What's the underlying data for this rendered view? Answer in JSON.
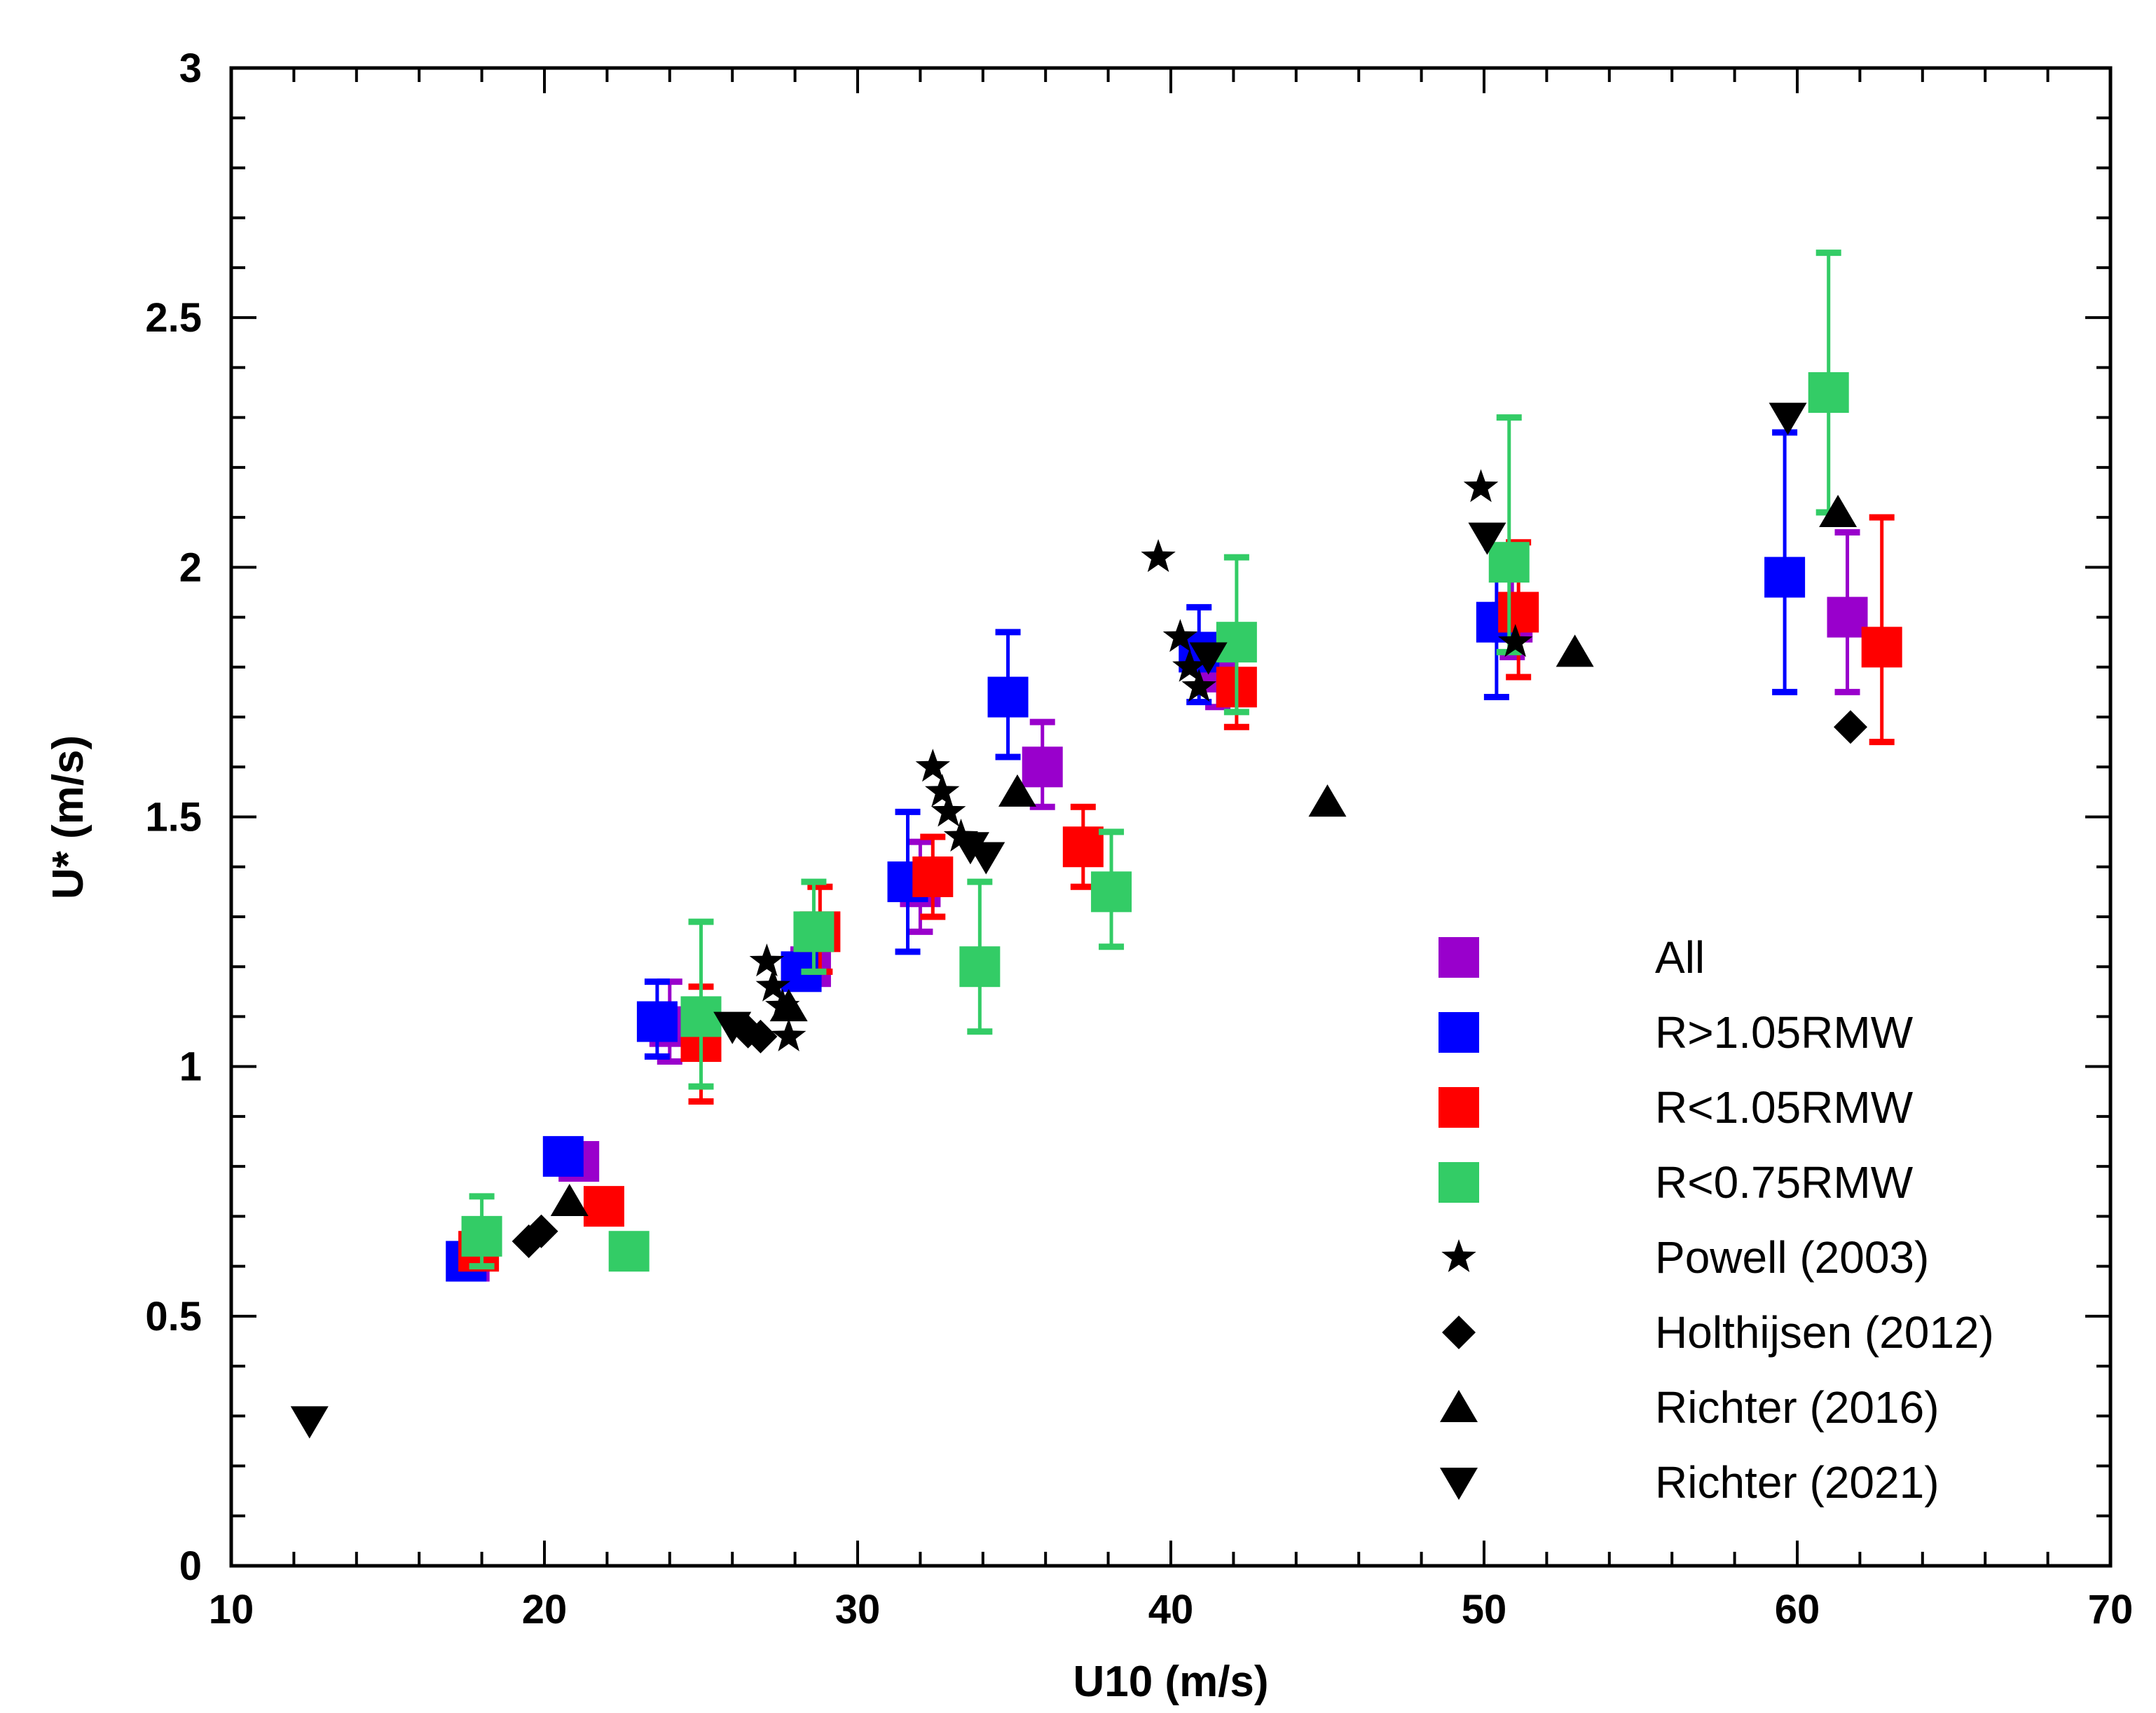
{
  "chart_data": {
    "type": "scatter",
    "title": "",
    "xlabel": "U10 (m/s)",
    "ylabel": "U* (m/s)",
    "xlim": [
      10,
      70
    ],
    "ylim": [
      0,
      3
    ],
    "x_ticks": [
      "10",
      "20",
      "30",
      "40",
      "50",
      "60",
      "70"
    ],
    "y_ticks": [
      "0",
      "0.5",
      "1",
      "1.5",
      "2",
      "2.5",
      "3"
    ],
    "legend_position": "bottom-right",
    "series": [
      {
        "name": "All",
        "marker": "square",
        "color": "#9900cc",
        "points": [
          {
            "x": 17.6,
            "y": 0.61
          },
          {
            "x": 21.1,
            "y": 0.81
          },
          {
            "x": 24.0,
            "y": 1.08,
            "err_low": 1.01,
            "err_high": 1.17
          },
          {
            "x": 28.5,
            "y": 1.2
          },
          {
            "x": 32.0,
            "y": 1.36,
            "err_low": 1.27,
            "err_high": 1.45
          },
          {
            "x": 35.9,
            "y": 1.6,
            "err_low": 1.52,
            "err_high": 1.69
          },
          {
            "x": 41.5,
            "y": 1.79,
            "err_low": 1.72,
            "err_high": 1.86
          },
          {
            "x": 50.9,
            "y": 1.89,
            "err_low": 1.82,
            "err_high": 1.98
          },
          {
            "x": 61.6,
            "y": 1.9,
            "err_low": 1.75,
            "err_high": 2.07
          }
        ]
      },
      {
        "name": "R>1.05RMW",
        "marker": "square",
        "color": "#0000ff",
        "points": [
          {
            "x": 17.5,
            "y": 0.61
          },
          {
            "x": 20.6,
            "y": 0.82
          },
          {
            "x": 23.6,
            "y": 1.09,
            "err_low": 1.02,
            "err_high": 1.17
          },
          {
            "x": 28.2,
            "y": 1.19
          },
          {
            "x": 31.6,
            "y": 1.37,
            "err_low": 1.23,
            "err_high": 1.51
          },
          {
            "x": 34.8,
            "y": 1.74,
            "err_low": 1.62,
            "err_high": 1.87
          },
          {
            "x": 40.9,
            "y": 1.83,
            "err_low": 1.73,
            "err_high": 1.92
          },
          {
            "x": 50.4,
            "y": 1.89,
            "err_low": 1.74,
            "err_high": 2.04
          },
          {
            "x": 59.6,
            "y": 1.98,
            "err_low": 1.75,
            "err_high": 2.27
          }
        ]
      },
      {
        "name": "R<1.05RMW",
        "marker": "square",
        "color": "#ff0000",
        "points": [
          {
            "x": 17.9,
            "y": 0.63
          },
          {
            "x": 21.9,
            "y": 0.72
          },
          {
            "x": 25.0,
            "y": 1.05,
            "err_low": 0.93,
            "err_high": 1.16
          },
          {
            "x": 28.8,
            "y": 1.27,
            "err_low": 1.19,
            "err_high": 1.36
          },
          {
            "x": 32.4,
            "y": 1.38,
            "err_low": 1.3,
            "err_high": 1.46
          },
          {
            "x": 37.2,
            "y": 1.44,
            "err_low": 1.36,
            "err_high": 1.52
          },
          {
            "x": 42.1,
            "y": 1.76,
            "err_low": 1.68,
            "err_high": 1.85
          },
          {
            "x": 51.1,
            "y": 1.91,
            "err_low": 1.78,
            "err_high": 2.05
          },
          {
            "x": 62.7,
            "y": 1.84,
            "err_low": 1.65,
            "err_high": 2.1
          }
        ]
      },
      {
        "name": "R<0.75RMW",
        "marker": "square",
        "color": "#33cc66",
        "points": [
          {
            "x": 18.0,
            "y": 0.66,
            "err_low": 0.6,
            "err_high": 0.74
          },
          {
            "x": 22.7,
            "y": 0.63
          },
          {
            "x": 25.0,
            "y": 1.1,
            "err_low": 0.96,
            "err_high": 1.29
          },
          {
            "x": 28.6,
            "y": 1.27,
            "err_low": 1.19,
            "err_high": 1.37
          },
          {
            "x": 33.9,
            "y": 1.2,
            "err_low": 1.07,
            "err_high": 1.37
          },
          {
            "x": 38.1,
            "y": 1.35,
            "err_low": 1.24,
            "err_high": 1.47
          },
          {
            "x": 42.1,
            "y": 1.85,
            "err_low": 1.71,
            "err_high": 2.02
          },
          {
            "x": 50.8,
            "y": 2.01,
            "err_low": 1.83,
            "err_high": 2.3
          },
          {
            "x": 61.0,
            "y": 2.35,
            "err_low": 2.11,
            "err_high": 2.63
          }
        ]
      },
      {
        "name": "Powell (2003)",
        "marker": "star",
        "color": "#000000",
        "points": [
          {
            "x": 27.1,
            "y": 1.21
          },
          {
            "x": 27.3,
            "y": 1.16
          },
          {
            "x": 27.6,
            "y": 1.12
          },
          {
            "x": 27.8,
            "y": 1.06
          },
          {
            "x": 32.4,
            "y": 1.6
          },
          {
            "x": 32.7,
            "y": 1.55
          },
          {
            "x": 32.9,
            "y": 1.51
          },
          {
            "x": 33.3,
            "y": 1.46
          },
          {
            "x": 39.6,
            "y": 2.02
          },
          {
            "x": 40.3,
            "y": 1.86
          },
          {
            "x": 40.6,
            "y": 1.8
          },
          {
            "x": 40.9,
            "y": 1.76
          },
          {
            "x": 49.9,
            "y": 2.16
          },
          {
            "x": 51.0,
            "y": 1.85
          }
        ]
      },
      {
        "name": "Holthijsen (2012)",
        "marker": "diamond",
        "color": "#000000",
        "points": [
          {
            "x": 19.5,
            "y": 0.65
          },
          {
            "x": 19.9,
            "y": 0.67
          },
          {
            "x": 26.5,
            "y": 1.07
          },
          {
            "x": 26.9,
            "y": 1.06
          },
          {
            "x": 61.7,
            "y": 1.68
          }
        ]
      },
      {
        "name": "Richter (2016)",
        "marker": "triangle-up",
        "color": "#000000",
        "points": [
          {
            "x": 20.8,
            "y": 0.73
          },
          {
            "x": 27.8,
            "y": 1.12
          },
          {
            "x": 35.1,
            "y": 1.55
          },
          {
            "x": 45.0,
            "y": 1.53
          },
          {
            "x": 52.9,
            "y": 1.83
          },
          {
            "x": 61.3,
            "y": 2.11
          }
        ]
      },
      {
        "name": "Richter (2021)",
        "marker": "triangle-down",
        "color": "#000000",
        "points": [
          {
            "x": 12.5,
            "y": 0.29
          },
          {
            "x": 26.0,
            "y": 1.08
          },
          {
            "x": 33.6,
            "y": 1.44
          },
          {
            "x": 34.1,
            "y": 1.42
          },
          {
            "x": 41.2,
            "y": 1.82
          },
          {
            "x": 50.1,
            "y": 2.06
          },
          {
            "x": 59.7,
            "y": 2.3
          }
        ]
      }
    ]
  }
}
